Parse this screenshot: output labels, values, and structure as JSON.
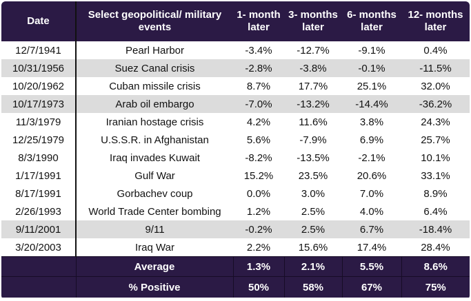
{
  "chart_data": {
    "type": "table",
    "columns": [
      "Date",
      "Select geopolitical/ military events",
      "1- month later",
      "3- months later",
      "6- months later",
      "12- months later"
    ],
    "rows": [
      {
        "date": "12/7/1941",
        "event": "Pearl Harbor",
        "values": [
          "-3.4%",
          "-12.7%",
          "-9.1%",
          "0.4%"
        ],
        "shaded": false
      },
      {
        "date": "10/31/1956",
        "event": "Suez Canal crisis",
        "values": [
          "-2.8%",
          "-3.8%",
          "-0.1%",
          "-11.5%"
        ],
        "shaded": true
      },
      {
        "date": "10/20/1962",
        "event": "Cuban missile crisis",
        "values": [
          "8.7%",
          "17.7%",
          "25.1%",
          "32.0%"
        ],
        "shaded": false
      },
      {
        "date": "10/17/1973",
        "event": "Arab oil embargo",
        "values": [
          "-7.0%",
          "-13.2%",
          "-14.4%",
          "-36.2%"
        ],
        "shaded": true
      },
      {
        "date": "11/3/1979",
        "event": "Iranian hostage crisis",
        "values": [
          "4.2%",
          "11.6%",
          "3.8%",
          "24.3%"
        ],
        "shaded": false
      },
      {
        "date": "12/25/1979",
        "event": "U.S.S.R. in Afghanistan",
        "values": [
          "5.6%",
          "-7.9%",
          "6.9%",
          "25.7%"
        ],
        "shaded": false
      },
      {
        "date": "8/3/1990",
        "event": "Iraq invades Kuwait",
        "values": [
          "-8.2%",
          "-13.5%",
          "-2.1%",
          "10.1%"
        ],
        "shaded": false
      },
      {
        "date": "1/17/1991",
        "event": "Gulf War",
        "values": [
          "15.2%",
          "23.5%",
          "20.6%",
          "33.1%"
        ],
        "shaded": false
      },
      {
        "date": "8/17/1991",
        "event": "Gorbachev coup",
        "values": [
          "0.0%",
          "3.0%",
          "7.0%",
          "8.9%"
        ],
        "shaded": false
      },
      {
        "date": "2/26/1993",
        "event": "World Trade Center bombing",
        "values": [
          "1.2%",
          "2.5%",
          "4.0%",
          "6.4%"
        ],
        "shaded": false
      },
      {
        "date": "9/11/2001",
        "event": "9/11",
        "values": [
          "-0.2%",
          "2.5%",
          "6.7%",
          "-18.4%"
        ],
        "shaded": true
      },
      {
        "date": "3/20/2003",
        "event": "Iraq War",
        "values": [
          "2.2%",
          "15.6%",
          "17.4%",
          "28.4%"
        ],
        "shaded": false
      }
    ],
    "summary": [
      {
        "label": "Average",
        "values": [
          "1.3%",
          "2.1%",
          "5.5%",
          "8.6%"
        ]
      },
      {
        "label": "% Positive",
        "values": [
          "50%",
          "58%",
          "67%",
          "75%"
        ]
      }
    ]
  },
  "colors": {
    "header": "#2b1a45",
    "shade": "#dcdcdc"
  }
}
